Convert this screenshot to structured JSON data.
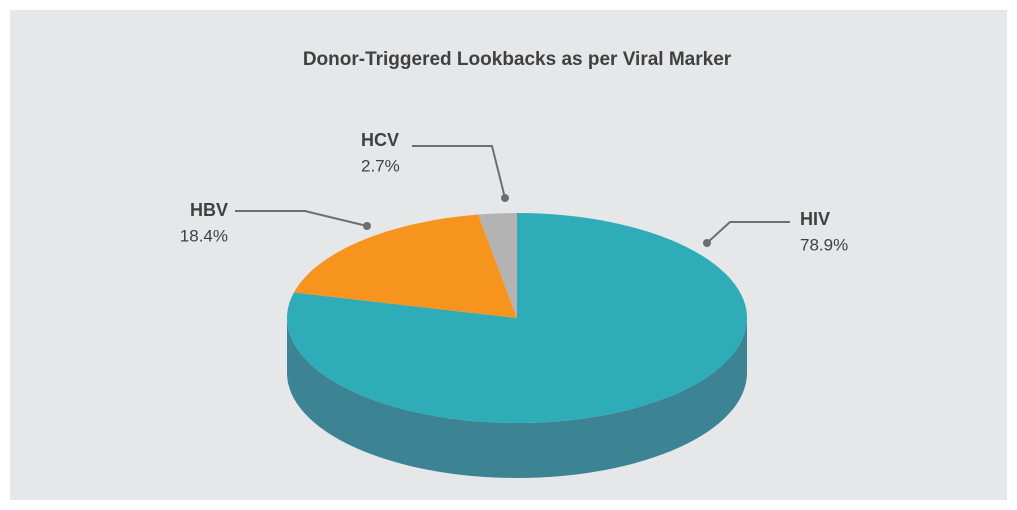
{
  "chart_data": {
    "type": "pie3d",
    "title": "Donor-Triggered Lookbacks as per Viral Marker",
    "categories": [
      "HIV",
      "HBV",
      "HCV"
    ],
    "values": [
      78.9,
      18.4,
      2.7
    ],
    "value_labels": [
      "78.9%",
      "18.4%",
      "2.7%"
    ],
    "colors": [
      "#2eacb8",
      "#f7941d",
      "#b3b3b3"
    ]
  }
}
